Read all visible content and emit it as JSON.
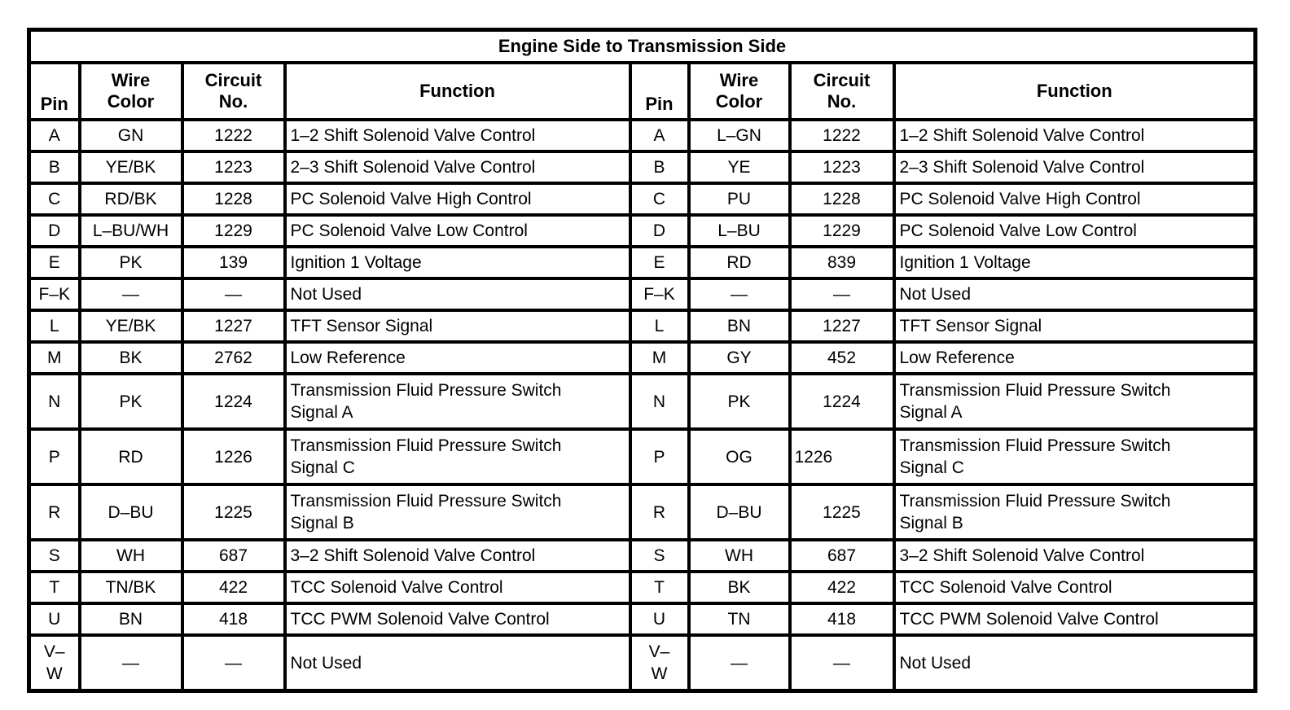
{
  "title": "Engine Side to Transmission Side",
  "columns": {
    "pin": "Pin",
    "wire": "Wire\nColor",
    "circuit": "Circuit\nNo.",
    "function": "Function"
  },
  "colors": {
    "border": "#000000",
    "background": "#ffffff",
    "text": "#000000"
  },
  "left_table": {
    "side": "Engine Side",
    "rows": [
      {
        "pin": "A",
        "wire": "GN",
        "circuit": "1222",
        "function": "1–2 Shift Solenoid Valve Control"
      },
      {
        "pin": "B",
        "wire": "YE/BK",
        "circuit": "1223",
        "function": "2–3 Shift Solenoid Valve Control"
      },
      {
        "pin": "C",
        "wire": "RD/BK",
        "circuit": "1228",
        "function": "PC Solenoid Valve High Control"
      },
      {
        "pin": "D",
        "wire": "L–BU/WH",
        "circuit": "1229",
        "function": "PC Solenoid Valve Low Control"
      },
      {
        "pin": "E",
        "wire": "PK",
        "circuit": "139",
        "function": "Ignition 1 Voltage"
      },
      {
        "pin": "F–K",
        "wire": "—",
        "circuit": "—",
        "function": "Not Used"
      },
      {
        "pin": "L",
        "wire": "YE/BK",
        "circuit": "1227",
        "function": "TFT Sensor Signal"
      },
      {
        "pin": "M",
        "wire": "BK",
        "circuit": "2762",
        "function": "Low Reference"
      },
      {
        "pin": "N",
        "wire": "PK",
        "circuit": "1224",
        "function": "Transmission Fluid Pressure Switch\nSignal A"
      },
      {
        "pin": "P",
        "wire": "RD",
        "circuit": "1226",
        "function": "Transmission Fluid Pressure Switch\nSignal C"
      },
      {
        "pin": "R",
        "wire": "D–BU",
        "circuit": "1225",
        "function": "Transmission Fluid Pressure Switch\nSignal B"
      },
      {
        "pin": "S",
        "wire": "WH",
        "circuit": "687",
        "function": "3–2 Shift Solenoid Valve Control"
      },
      {
        "pin": "T",
        "wire": "TN/BK",
        "circuit": "422",
        "function": "TCC Solenoid Valve Control"
      },
      {
        "pin": "U",
        "wire": "BN",
        "circuit": "418",
        "function": "TCC PWM Solenoid Valve Control"
      },
      {
        "pin": "V–\nW",
        "wire": "—",
        "circuit": "—",
        "function": "Not Used"
      }
    ]
  },
  "right_table": {
    "side": "Transmission Side",
    "rows": [
      {
        "pin": "A",
        "wire": "L–GN",
        "circuit": "1222",
        "function": "1–2 Shift Solenoid Valve Control"
      },
      {
        "pin": "B",
        "wire": "YE",
        "circuit": "1223",
        "function": "2–3 Shift Solenoid Valve Control"
      },
      {
        "pin": "C",
        "wire": "PU",
        "circuit": "1228",
        "function": "PC Solenoid Valve High Control"
      },
      {
        "pin": "D",
        "wire": "L–BU",
        "circuit": "1229",
        "function": "PC Solenoid Valve Low Control"
      },
      {
        "pin": "E",
        "wire": "RD",
        "circuit": "839",
        "function": "Ignition 1 Voltage"
      },
      {
        "pin": "F–K",
        "wire": "—",
        "circuit": "—",
        "function": "Not Used"
      },
      {
        "pin": "L",
        "wire": "BN",
        "circuit": "1227",
        "function": "TFT Sensor Signal"
      },
      {
        "pin": "M",
        "wire": "GY",
        "circuit": "452",
        "function": "Low Reference"
      },
      {
        "pin": "N",
        "wire": "PK",
        "circuit": "1224",
        "function": "Transmission Fluid Pressure Switch\nSignal A"
      },
      {
        "pin": "P",
        "wire": "OG",
        "circuit": "1226",
        "circuit_align": "left",
        "function": "Transmission Fluid Pressure Switch\nSignal C"
      },
      {
        "pin": "R",
        "wire": "D–BU",
        "circuit": "1225",
        "function": "Transmission Fluid Pressure Switch\nSignal B"
      },
      {
        "pin": "S",
        "wire": "WH",
        "circuit": "687",
        "function": "3–2 Shift Solenoid Valve Control"
      },
      {
        "pin": "T",
        "wire": "BK",
        "circuit": "422",
        "function": "TCC Solenoid Valve Control"
      },
      {
        "pin": "U",
        "wire": "TN",
        "circuit": "418",
        "function": "TCC PWM Solenoid Valve Control"
      },
      {
        "pin": "V–\nW",
        "wire": "—",
        "circuit": "—",
        "function": "Not Used"
      }
    ]
  }
}
